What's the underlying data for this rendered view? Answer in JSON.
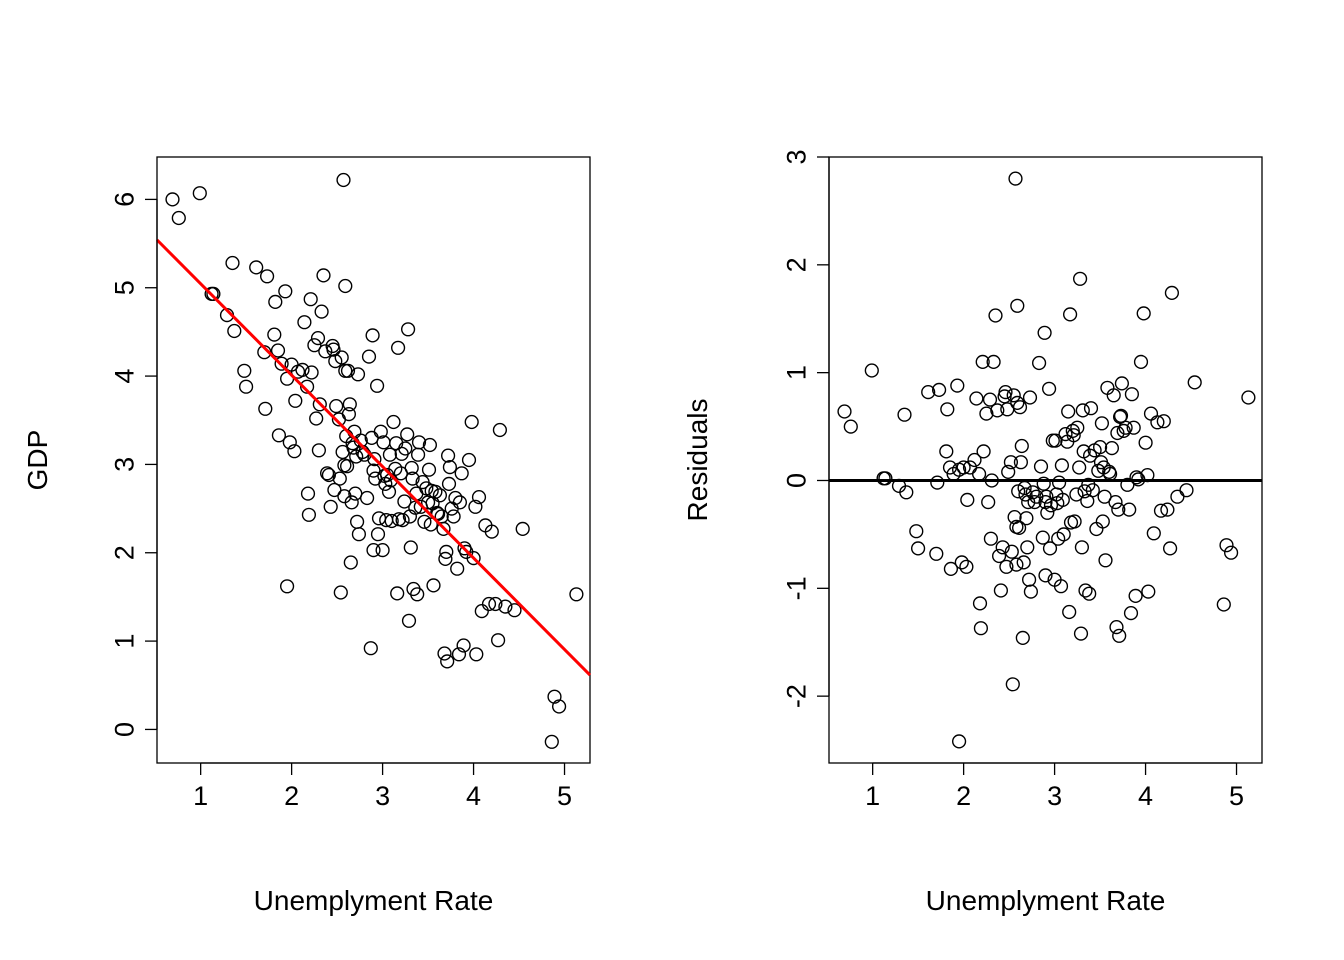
{
  "chart_data": [
    {
      "type": "scatter",
      "xlabel": "Unemplyment Rate",
      "ylabel": "GDP",
      "xlim": [
        0.52,
        5.28
      ],
      "ylim": [
        -0.38,
        6.48
      ],
      "xticks": [
        "1",
        "2",
        "3",
        "4",
        "5"
      ],
      "yticks": [
        "0",
        "1",
        "2",
        "3",
        "4",
        "5",
        "6"
      ],
      "line_color": "#ff0000",
      "regression_line": {
        "intercept": 6.08,
        "slope": -1.035
      },
      "points": [
        [
          0.69,
          6.0
        ],
        [
          0.76,
          5.79
        ],
        [
          0.99,
          6.07
        ],
        [
          1.12,
          4.93
        ],
        [
          1.14,
          4.93
        ],
        [
          1.29,
          4.69
        ],
        [
          1.35,
          5.28
        ],
        [
          1.37,
          4.51
        ],
        [
          1.48,
          4.06
        ],
        [
          1.5,
          3.88
        ],
        [
          1.61,
          5.23
        ],
        [
          1.7,
          4.27
        ],
        [
          1.71,
          3.63
        ],
        [
          1.73,
          5.13
        ],
        [
          1.81,
          4.47
        ],
        [
          1.82,
          4.84
        ],
        [
          1.85,
          4.29
        ],
        [
          1.86,
          3.33
        ],
        [
          1.89,
          4.14
        ],
        [
          1.93,
          4.96
        ],
        [
          1.95,
          3.97
        ],
        [
          1.95,
          1.62
        ],
        [
          1.98,
          3.25
        ],
        [
          2.0,
          4.13
        ],
        [
          2.03,
          3.15
        ],
        [
          2.04,
          3.72
        ],
        [
          2.07,
          4.05
        ],
        [
          2.12,
          4.07
        ],
        [
          2.14,
          4.61
        ],
        [
          2.17,
          3.88
        ],
        [
          2.18,
          2.67
        ],
        [
          2.19,
          2.43
        ],
        [
          2.21,
          4.87
        ],
        [
          2.22,
          4.04
        ],
        [
          2.25,
          4.35
        ],
        [
          2.27,
          3.52
        ],
        [
          2.29,
          4.43
        ],
        [
          2.3,
          3.16
        ],
        [
          2.31,
          3.68
        ],
        [
          2.33,
          4.73
        ],
        [
          2.35,
          5.14
        ],
        [
          2.37,
          4.28
        ],
        [
          2.39,
          2.9
        ],
        [
          2.41,
          2.88
        ],
        [
          2.43,
          2.52
        ],
        [
          2.45,
          4.34
        ],
        [
          2.46,
          4.3
        ],
        [
          2.47,
          2.71
        ],
        [
          2.48,
          4.17
        ],
        [
          2.49,
          3.66
        ],
        [
          2.52,
          3.51
        ],
        [
          2.53,
          2.84
        ],
        [
          2.54,
          1.55
        ],
        [
          2.55,
          4.21
        ],
        [
          2.56,
          3.14
        ],
        [
          2.57,
          6.22
        ],
        [
          2.58,
          2.99
        ],
        [
          2.58,
          2.64
        ],
        [
          2.59,
          5.02
        ],
        [
          2.59,
          4.06
        ],
        [
          2.6,
          3.32
        ],
        [
          2.61,
          2.98
        ],
        [
          2.62,
          4.06
        ],
        [
          2.63,
          3.57
        ],
        [
          2.64,
          3.68
        ],
        [
          2.65,
          1.89
        ],
        [
          2.66,
          2.57
        ],
        [
          2.67,
          3.24
        ],
        [
          2.68,
          3.19
        ],
        [
          2.69,
          3.37
        ],
        [
          2.7,
          2.67
        ],
        [
          2.71,
          3.09
        ],
        [
          2.72,
          2.35
        ],
        [
          2.73,
          4.02
        ],
        [
          2.74,
          2.21
        ],
        [
          2.76,
          3.27
        ],
        [
          2.78,
          3.14
        ],
        [
          2.8,
          3.11
        ],
        [
          2.83,
          2.62
        ],
        [
          2.85,
          4.22
        ],
        [
          2.87,
          0.92
        ],
        [
          2.88,
          3.3
        ],
        [
          2.89,
          4.46
        ],
        [
          2.9,
          2.93
        ],
        [
          2.9,
          2.03
        ],
        [
          2.91,
          3.06
        ],
        [
          2.92,
          2.84
        ],
        [
          2.94,
          3.89
        ],
        [
          2.95,
          2.21
        ],
        [
          2.96,
          2.39
        ],
        [
          2.98,
          3.37
        ],
        [
          3.0,
          2.03
        ],
        [
          3.01,
          3.25
        ],
        [
          3.02,
          2.87
        ],
        [
          3.03,
          2.78
        ],
        [
          3.04,
          2.37
        ],
        [
          3.05,
          2.88
        ],
        [
          3.07,
          2.69
        ],
        [
          3.08,
          3.11
        ],
        [
          3.09,
          2.82
        ],
        [
          3.1,
          2.36
        ],
        [
          3.12,
          3.48
        ],
        [
          3.14,
          2.95
        ],
        [
          3.15,
          3.24
        ],
        [
          3.16,
          1.54
        ],
        [
          3.17,
          4.32
        ],
        [
          3.18,
          2.38
        ],
        [
          3.2,
          2.9
        ],
        [
          3.21,
          3.12
        ],
        [
          3.22,
          2.37
        ],
        [
          3.24,
          2.58
        ],
        [
          3.25,
          3.18
        ],
        [
          3.27,
          3.34
        ],
        [
          3.28,
          4.53
        ],
        [
          3.29,
          1.23
        ],
        [
          3.3,
          2.41
        ],
        [
          3.31,
          2.06
        ],
        [
          3.32,
          2.96
        ],
        [
          3.33,
          2.84
        ],
        [
          3.34,
          1.59
        ],
        [
          3.36,
          2.51
        ],
        [
          3.37,
          2.67
        ],
        [
          3.38,
          1.53
        ],
        [
          3.39,
          3.11
        ],
        [
          3.4,
          3.25
        ],
        [
          3.42,
          2.52
        ],
        [
          3.44,
          2.8
        ],
        [
          3.46,
          2.35
        ],
        [
          3.48,
          2.73
        ],
        [
          3.5,
          2.57
        ],
        [
          3.51,
          2.94
        ],
        [
          3.52,
          3.22
        ],
        [
          3.53,
          2.32
        ],
        [
          3.54,
          2.7
        ],
        [
          3.55,
          2.56
        ],
        [
          3.56,
          1.63
        ],
        [
          3.58,
          2.69
        ],
        [
          3.6,
          2.45
        ],
        [
          3.61,
          2.44
        ],
        [
          3.63,
          2.65
        ],
        [
          3.65,
          2.41
        ],
        [
          3.67,
          2.27
        ],
        [
          3.68,
          0.86
        ],
        [
          3.69,
          1.93
        ],
        [
          3.7,
          2.01
        ],
        [
          3.71,
          0.77
        ],
        [
          3.72,
          3.1
        ],
        [
          3.73,
          2.78
        ],
        [
          3.74,
          2.97
        ],
        [
          3.76,
          2.5
        ],
        [
          3.78,
          2.41
        ],
        [
          3.8,
          2.62
        ],
        [
          3.82,
          1.82
        ],
        [
          3.84,
          0.85
        ],
        [
          3.85,
          2.57
        ],
        [
          3.87,
          2.9
        ],
        [
          3.89,
          0.95
        ],
        [
          3.9,
          2.05
        ],
        [
          3.92,
          2.01
        ],
        [
          3.95,
          3.05
        ],
        [
          3.98,
          3.48
        ],
        [
          4.0,
          1.94
        ],
        [
          4.02,
          2.52
        ],
        [
          4.03,
          0.85
        ],
        [
          4.06,
          2.63
        ],
        [
          4.09,
          1.34
        ],
        [
          4.13,
          2.31
        ],
        [
          4.17,
          1.42
        ],
        [
          4.2,
          2.24
        ],
        [
          4.24,
          1.42
        ],
        [
          4.27,
          1.01
        ],
        [
          4.29,
          3.39
        ],
        [
          4.35,
          1.39
        ],
        [
          4.45,
          1.35
        ],
        [
          4.54,
          2.27
        ],
        [
          4.86,
          -0.14
        ],
        [
          4.89,
          0.37
        ],
        [
          4.94,
          0.26
        ],
        [
          5.13,
          1.53
        ]
      ]
    },
    {
      "type": "scatter",
      "xlabel": "Unemplyment Rate",
      "ylabel": "Residuals",
      "xlim": [
        0.52,
        5.28
      ],
      "ylim": [
        -2.62,
        3.0
      ],
      "xticks": [
        "1",
        "2",
        "3",
        "4",
        "5"
      ],
      "yticks": [
        "-2",
        "-1",
        "0",
        "1",
        "2",
        "3"
      ],
      "reference_line": 0,
      "points": [
        [
          0.69,
          0.64
        ],
        [
          0.76,
          0.5
        ],
        [
          0.99,
          1.02
        ],
        [
          1.12,
          0.02
        ],
        [
          1.14,
          0.02
        ],
        [
          1.29,
          -0.05
        ],
        [
          1.35,
          0.61
        ],
        [
          1.37,
          -0.11
        ],
        [
          1.48,
          -0.47
        ],
        [
          1.5,
          -0.63
        ],
        [
          1.61,
          0.82
        ],
        [
          1.7,
          -0.68
        ],
        [
          1.71,
          -0.02
        ],
        [
          1.73,
          0.84
        ],
        [
          1.81,
          0.27
        ],
        [
          1.82,
          0.66
        ],
        [
          1.85,
          0.12
        ],
        [
          1.86,
          -0.82
        ],
        [
          1.89,
          0.06
        ],
        [
          1.93,
          0.88
        ],
        [
          1.95,
          0.1
        ],
        [
          1.95,
          -2.42
        ],
        [
          1.98,
          -0.76
        ],
        [
          2.0,
          0.12
        ],
        [
          2.03,
          -0.8
        ],
        [
          2.04,
          -0.18
        ],
        [
          2.07,
          0.12
        ],
        [
          2.12,
          0.19
        ],
        [
          2.14,
          0.76
        ],
        [
          2.17,
          0.06
        ],
        [
          2.18,
          -1.14
        ],
        [
          2.19,
          -1.37
        ],
        [
          2.21,
          1.1
        ],
        [
          2.22,
          0.27
        ],
        [
          2.25,
          0.62
        ],
        [
          2.27,
          -0.2
        ],
        [
          2.29,
          0.75
        ],
        [
          2.3,
          -0.54
        ],
        [
          2.31,
          0.0
        ],
        [
          2.33,
          1.1
        ],
        [
          2.35,
          1.53
        ],
        [
          2.37,
          0.65
        ],
        [
          2.39,
          -0.7
        ],
        [
          2.41,
          -1.02
        ],
        [
          2.43,
          -0.62
        ],
        [
          2.45,
          0.78
        ],
        [
          2.46,
          0.82
        ],
        [
          2.47,
          -0.8
        ],
        [
          2.48,
          0.66
        ],
        [
          2.49,
          0.08
        ],
        [
          2.52,
          0.17
        ],
        [
          2.53,
          -0.66
        ],
        [
          2.54,
          -1.89
        ],
        [
          2.55,
          0.79
        ],
        [
          2.56,
          -0.34
        ],
        [
          2.57,
          2.8
        ],
        [
          2.58,
          -0.43
        ],
        [
          2.58,
          -0.78
        ],
        [
          2.59,
          1.62
        ],
        [
          2.59,
          0.72
        ],
        [
          2.6,
          -0.1
        ],
        [
          2.61,
          -0.44
        ],
        [
          2.62,
          0.68
        ],
        [
          2.63,
          0.17
        ],
        [
          2.64,
          0.32
        ],
        [
          2.65,
          -1.46
        ],
        [
          2.66,
          -0.76
        ],
        [
          2.67,
          -0.07
        ],
        [
          2.68,
          -0.13
        ],
        [
          2.69,
          -0.35
        ],
        [
          2.7,
          -0.62
        ],
        [
          2.71,
          -0.2
        ],
        [
          2.72,
          -0.92
        ],
        [
          2.73,
          0.77
        ],
        [
          2.74,
          -1.03
        ],
        [
          2.76,
          -0.11
        ],
        [
          2.78,
          -0.2
        ],
        [
          2.8,
          -0.15
        ],
        [
          2.83,
          1.09
        ],
        [
          2.85,
          0.13
        ],
        [
          2.87,
          -0.53
        ],
        [
          2.88,
          -0.03
        ],
        [
          2.89,
          1.37
        ],
        [
          2.9,
          -0.2
        ],
        [
          2.9,
          -0.88
        ],
        [
          2.91,
          -0.15
        ],
        [
          2.92,
          -0.3
        ],
        [
          2.94,
          0.85
        ],
        [
          2.95,
          -0.63
        ],
        [
          2.96,
          -0.23
        ],
        [
          2.98,
          0.37
        ],
        [
          3.0,
          -0.92
        ],
        [
          3.01,
          0.37
        ],
        [
          3.02,
          -0.13
        ],
        [
          3.03,
          -0.21
        ],
        [
          3.04,
          -0.54
        ],
        [
          3.05,
          -0.02
        ],
        [
          3.07,
          -0.98
        ],
        [
          3.08,
          0.14
        ],
        [
          3.09,
          -0.18
        ],
        [
          3.1,
          -0.5
        ],
        [
          3.12,
          0.43
        ],
        [
          3.14,
          0.36
        ],
        [
          3.15,
          0.64
        ],
        [
          3.16,
          -1.22
        ],
        [
          3.17,
          1.54
        ],
        [
          3.18,
          -0.39
        ],
        [
          3.2,
          0.46
        ],
        [
          3.21,
          0.42
        ],
        [
          3.22,
          -0.38
        ],
        [
          3.24,
          -0.13
        ],
        [
          3.25,
          0.49
        ],
        [
          3.27,
          0.12
        ],
        [
          3.28,
          1.87
        ],
        [
          3.29,
          -1.42
        ],
        [
          3.3,
          -0.62
        ],
        [
          3.31,
          0.65
        ],
        [
          3.32,
          0.27
        ],
        [
          3.33,
          -0.1
        ],
        [
          3.34,
          -1.02
        ],
        [
          3.36,
          -0.19
        ],
        [
          3.37,
          -0.04
        ],
        [
          3.38,
          -1.05
        ],
        [
          3.39,
          0.23
        ],
        [
          3.4,
          0.67
        ],
        [
          3.42,
          -0.09
        ],
        [
          3.44,
          0.28
        ],
        [
          3.46,
          -0.45
        ],
        [
          3.48,
          0.09
        ],
        [
          3.5,
          0.31
        ],
        [
          3.51,
          0.17
        ],
        [
          3.52,
          0.53
        ],
        [
          3.53,
          -0.38
        ],
        [
          3.54,
          0.12
        ],
        [
          3.55,
          -0.15
        ],
        [
          3.56,
          -0.74
        ],
        [
          3.58,
          0.86
        ],
        [
          3.6,
          0.08
        ],
        [
          3.61,
          0.06
        ],
        [
          3.63,
          0.3
        ],
        [
          3.65,
          0.79
        ],
        [
          3.67,
          -0.2
        ],
        [
          3.68,
          -1.36
        ],
        [
          3.69,
          0.44
        ],
        [
          3.7,
          -0.27
        ],
        [
          3.71,
          -1.44
        ],
        [
          3.72,
          0.59
        ],
        [
          3.73,
          0.6
        ],
        [
          3.74,
          0.9
        ],
        [
          3.76,
          0.46
        ],
        [
          3.78,
          0.49
        ],
        [
          3.8,
          -0.04
        ],
        [
          3.82,
          -0.27
        ],
        [
          3.84,
          -1.23
        ],
        [
          3.85,
          0.8
        ],
        [
          3.87,
          0.49
        ],
        [
          3.89,
          -1.07
        ],
        [
          3.9,
          0.03
        ],
        [
          3.92,
          0.01
        ],
        [
          3.95,
          1.1
        ],
        [
          3.98,
          1.55
        ],
        [
          4.0,
          0.35
        ],
        [
          4.02,
          0.05
        ],
        [
          4.03,
          -1.03
        ],
        [
          4.06,
          0.62
        ],
        [
          4.09,
          -0.49
        ],
        [
          4.13,
          0.54
        ],
        [
          4.17,
          -0.28
        ],
        [
          4.2,
          0.55
        ],
        [
          4.24,
          -0.27
        ],
        [
          4.27,
          -0.63
        ],
        [
          4.29,
          1.74
        ],
        [
          4.35,
          -0.15
        ],
        [
          4.45,
          -0.09
        ],
        [
          4.54,
          0.91
        ],
        [
          4.86,
          -1.15
        ],
        [
          4.89,
          -0.6
        ],
        [
          4.94,
          -0.67
        ],
        [
          5.13,
          0.77
        ]
      ]
    }
  ]
}
